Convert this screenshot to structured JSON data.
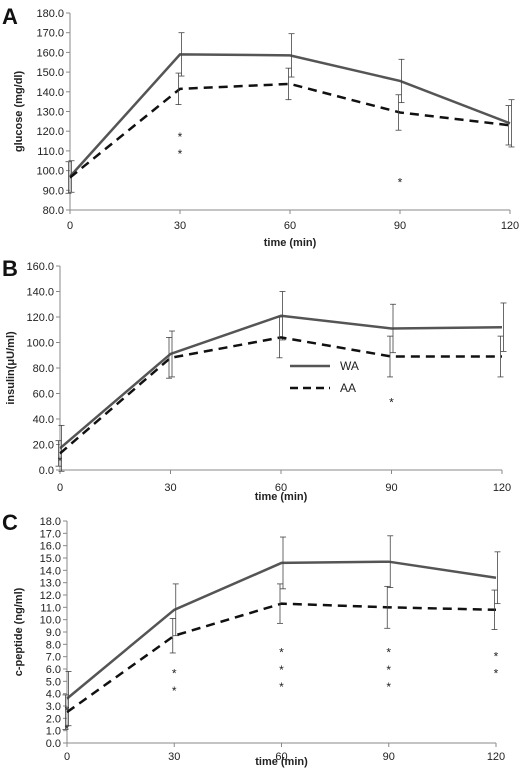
{
  "colors": {
    "wa": "#555555",
    "aa": "#111111",
    "axis": "#888888"
  },
  "chart_data": [
    {
      "panel": "A",
      "type": "line",
      "ylabel": "glucose (mg/dl)",
      "xlabel": "time (min)",
      "ylim": [
        80,
        180
      ],
      "yticks": [
        80,
        90,
        100,
        110,
        120,
        130,
        140,
        150,
        160,
        170,
        180
      ],
      "ytick_labels": [
        "80.0",
        "90.0",
        "100.0",
        "110.0",
        "120.0",
        "130.0",
        "140.0",
        "150.0",
        "160.0",
        "170.0",
        "180.0"
      ],
      "x": [
        0,
        30,
        60,
        90,
        120
      ],
      "x_labels": [
        "0",
        "30",
        "60",
        "90",
        "120"
      ],
      "series": [
        {
          "key": "WA",
          "style": "solid",
          "values": [
            97,
            159,
            158.5,
            145.5,
            124
          ],
          "err": [
            8,
            11,
            11,
            11,
            12
          ]
        },
        {
          "key": "AA",
          "style": "dashed",
          "values": [
            96.5,
            141.5,
            144,
            129.5,
            123
          ],
          "err": [
            8,
            8,
            8,
            9,
            10
          ]
        }
      ],
      "annotations": [
        {
          "x": 30,
          "y": 115,
          "text": "*"
        },
        {
          "x": 30,
          "y": 106.5,
          "text": "*"
        },
        {
          "x": 90,
          "y": 92,
          "text": "*"
        }
      ]
    },
    {
      "panel": "B",
      "type": "line",
      "ylabel": "insulin(μU/ml)",
      "xlabel": "time (min)",
      "ylim": [
        0,
        160
      ],
      "yticks": [
        0,
        20,
        40,
        60,
        80,
        100,
        120,
        140,
        160
      ],
      "ytick_labels": [
        "0.0",
        "20.0",
        "40.0",
        "60.0",
        "80.0",
        "100.0",
        "120.0",
        "140.0",
        "160.0"
      ],
      "x": [
        0,
        30,
        60,
        90,
        120
      ],
      "x_labels": [
        "0",
        "30",
        "60",
        "90",
        "120"
      ],
      "series": [
        {
          "key": "WA",
          "name": "WA",
          "style": "solid",
          "values": [
            17,
            91,
            121,
            111,
            112
          ],
          "err": [
            18,
            18,
            19,
            19,
            19
          ]
        },
        {
          "key": "AA",
          "name": "AA",
          "style": "dashed",
          "values": [
            13,
            88,
            104,
            89,
            89
          ],
          "err": [
            10,
            16,
            16,
            16,
            16
          ]
        }
      ],
      "annotations": [
        {
          "x": 0,
          "y": 4,
          "text": "*"
        },
        {
          "x": 90,
          "y": 50,
          "text": "*"
        }
      ],
      "legend": {
        "placement": "center"
      }
    },
    {
      "panel": "C",
      "type": "line",
      "ylabel": "c-peptide (ng/ml)",
      "xlabel": "time (min)",
      "ylim": [
        0,
        18
      ],
      "yticks": [
        0,
        1,
        2,
        3,
        4,
        5,
        6,
        7,
        8,
        9,
        10,
        11,
        12,
        13,
        14,
        15,
        16,
        17,
        18
      ],
      "ytick_labels": [
        "0.0",
        "1.0",
        "2.0",
        "3.0",
        "4.0",
        "5.0",
        "6.0",
        "7.0",
        "8.0",
        "9.0",
        "10.0",
        "11.0",
        "12.0",
        "13.0",
        "14.0",
        "15.0",
        "16.0",
        "17.0",
        "18.0"
      ],
      "x": [
        0,
        30,
        60,
        90,
        120
      ],
      "x_labels": [
        "0",
        "30",
        "60",
        "90",
        "120"
      ],
      "series": [
        {
          "key": "WA",
          "style": "solid",
          "values": [
            3.6,
            10.8,
            14.6,
            14.7,
            13.4
          ],
          "err": [
            2.2,
            2.1,
            2.1,
            2.1,
            2.1
          ]
        },
        {
          "key": "AA",
          "style": "dashed",
          "values": [
            2.5,
            8.7,
            11.3,
            11.0,
            10.8
          ],
          "err": [
            1.4,
            1.4,
            1.6,
            1.7,
            1.6
          ]
        }
      ],
      "annotations": [
        {
          "x": 0,
          "y": 2.3,
          "text": "*"
        },
        {
          "x": 0,
          "y": 0.8,
          "text": "*"
        },
        {
          "x": 30,
          "y": 5.3,
          "text": "*"
        },
        {
          "x": 30,
          "y": 3.9,
          "text": "*"
        },
        {
          "x": 60,
          "y": 7.0,
          "text": "*"
        },
        {
          "x": 60,
          "y": 5.6,
          "text": "*"
        },
        {
          "x": 60,
          "y": 4.2,
          "text": "*"
        },
        {
          "x": 90,
          "y": 7.0,
          "text": "*"
        },
        {
          "x": 90,
          "y": 5.6,
          "text": "*"
        },
        {
          "x": 90,
          "y": 4.2,
          "text": "*"
        },
        {
          "x": 120,
          "y": 6.7,
          "text": "*"
        },
        {
          "x": 120,
          "y": 5.3,
          "text": "*"
        }
      ]
    }
  ]
}
